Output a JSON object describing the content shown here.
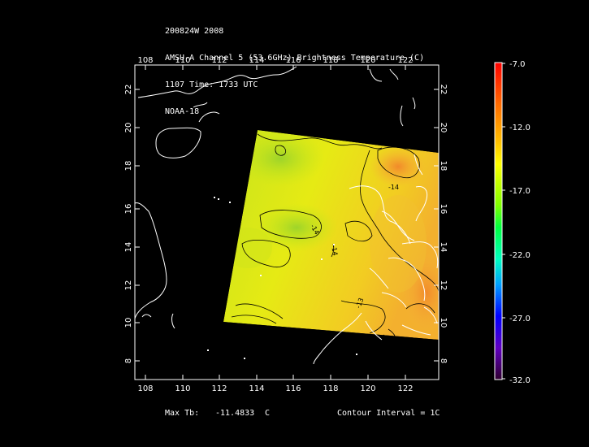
{
  "header": {
    "storm": "200824W 2008",
    "product": "AMSU-A Channel 5 (53.6GHz) Brightness Temperature (C)",
    "time": "1107 Time: 1733 UTC",
    "satellite": "NOAA-18"
  },
  "map": {
    "lon_ticks": [
      "108",
      "110",
      "112",
      "114",
      "116",
      "118",
      "120",
      "122"
    ],
    "lat_ticks": [
      "8",
      "10",
      "12",
      "14",
      "16",
      "18",
      "20",
      "22"
    ],
    "contour_labels": [
      "-14",
      "-14",
      "-14",
      "-13",
      "-14"
    ]
  },
  "colorbar": {
    "labels": [
      "-7.0",
      "-12.0",
      "-17.0",
      "-22.0",
      "-27.0",
      "-32.0"
    ]
  },
  "footer": {
    "max_label": "Max Tb:",
    "max_value": "-11.4833",
    "max_unit": "C",
    "contour": "Contour Interval = 1C"
  }
}
